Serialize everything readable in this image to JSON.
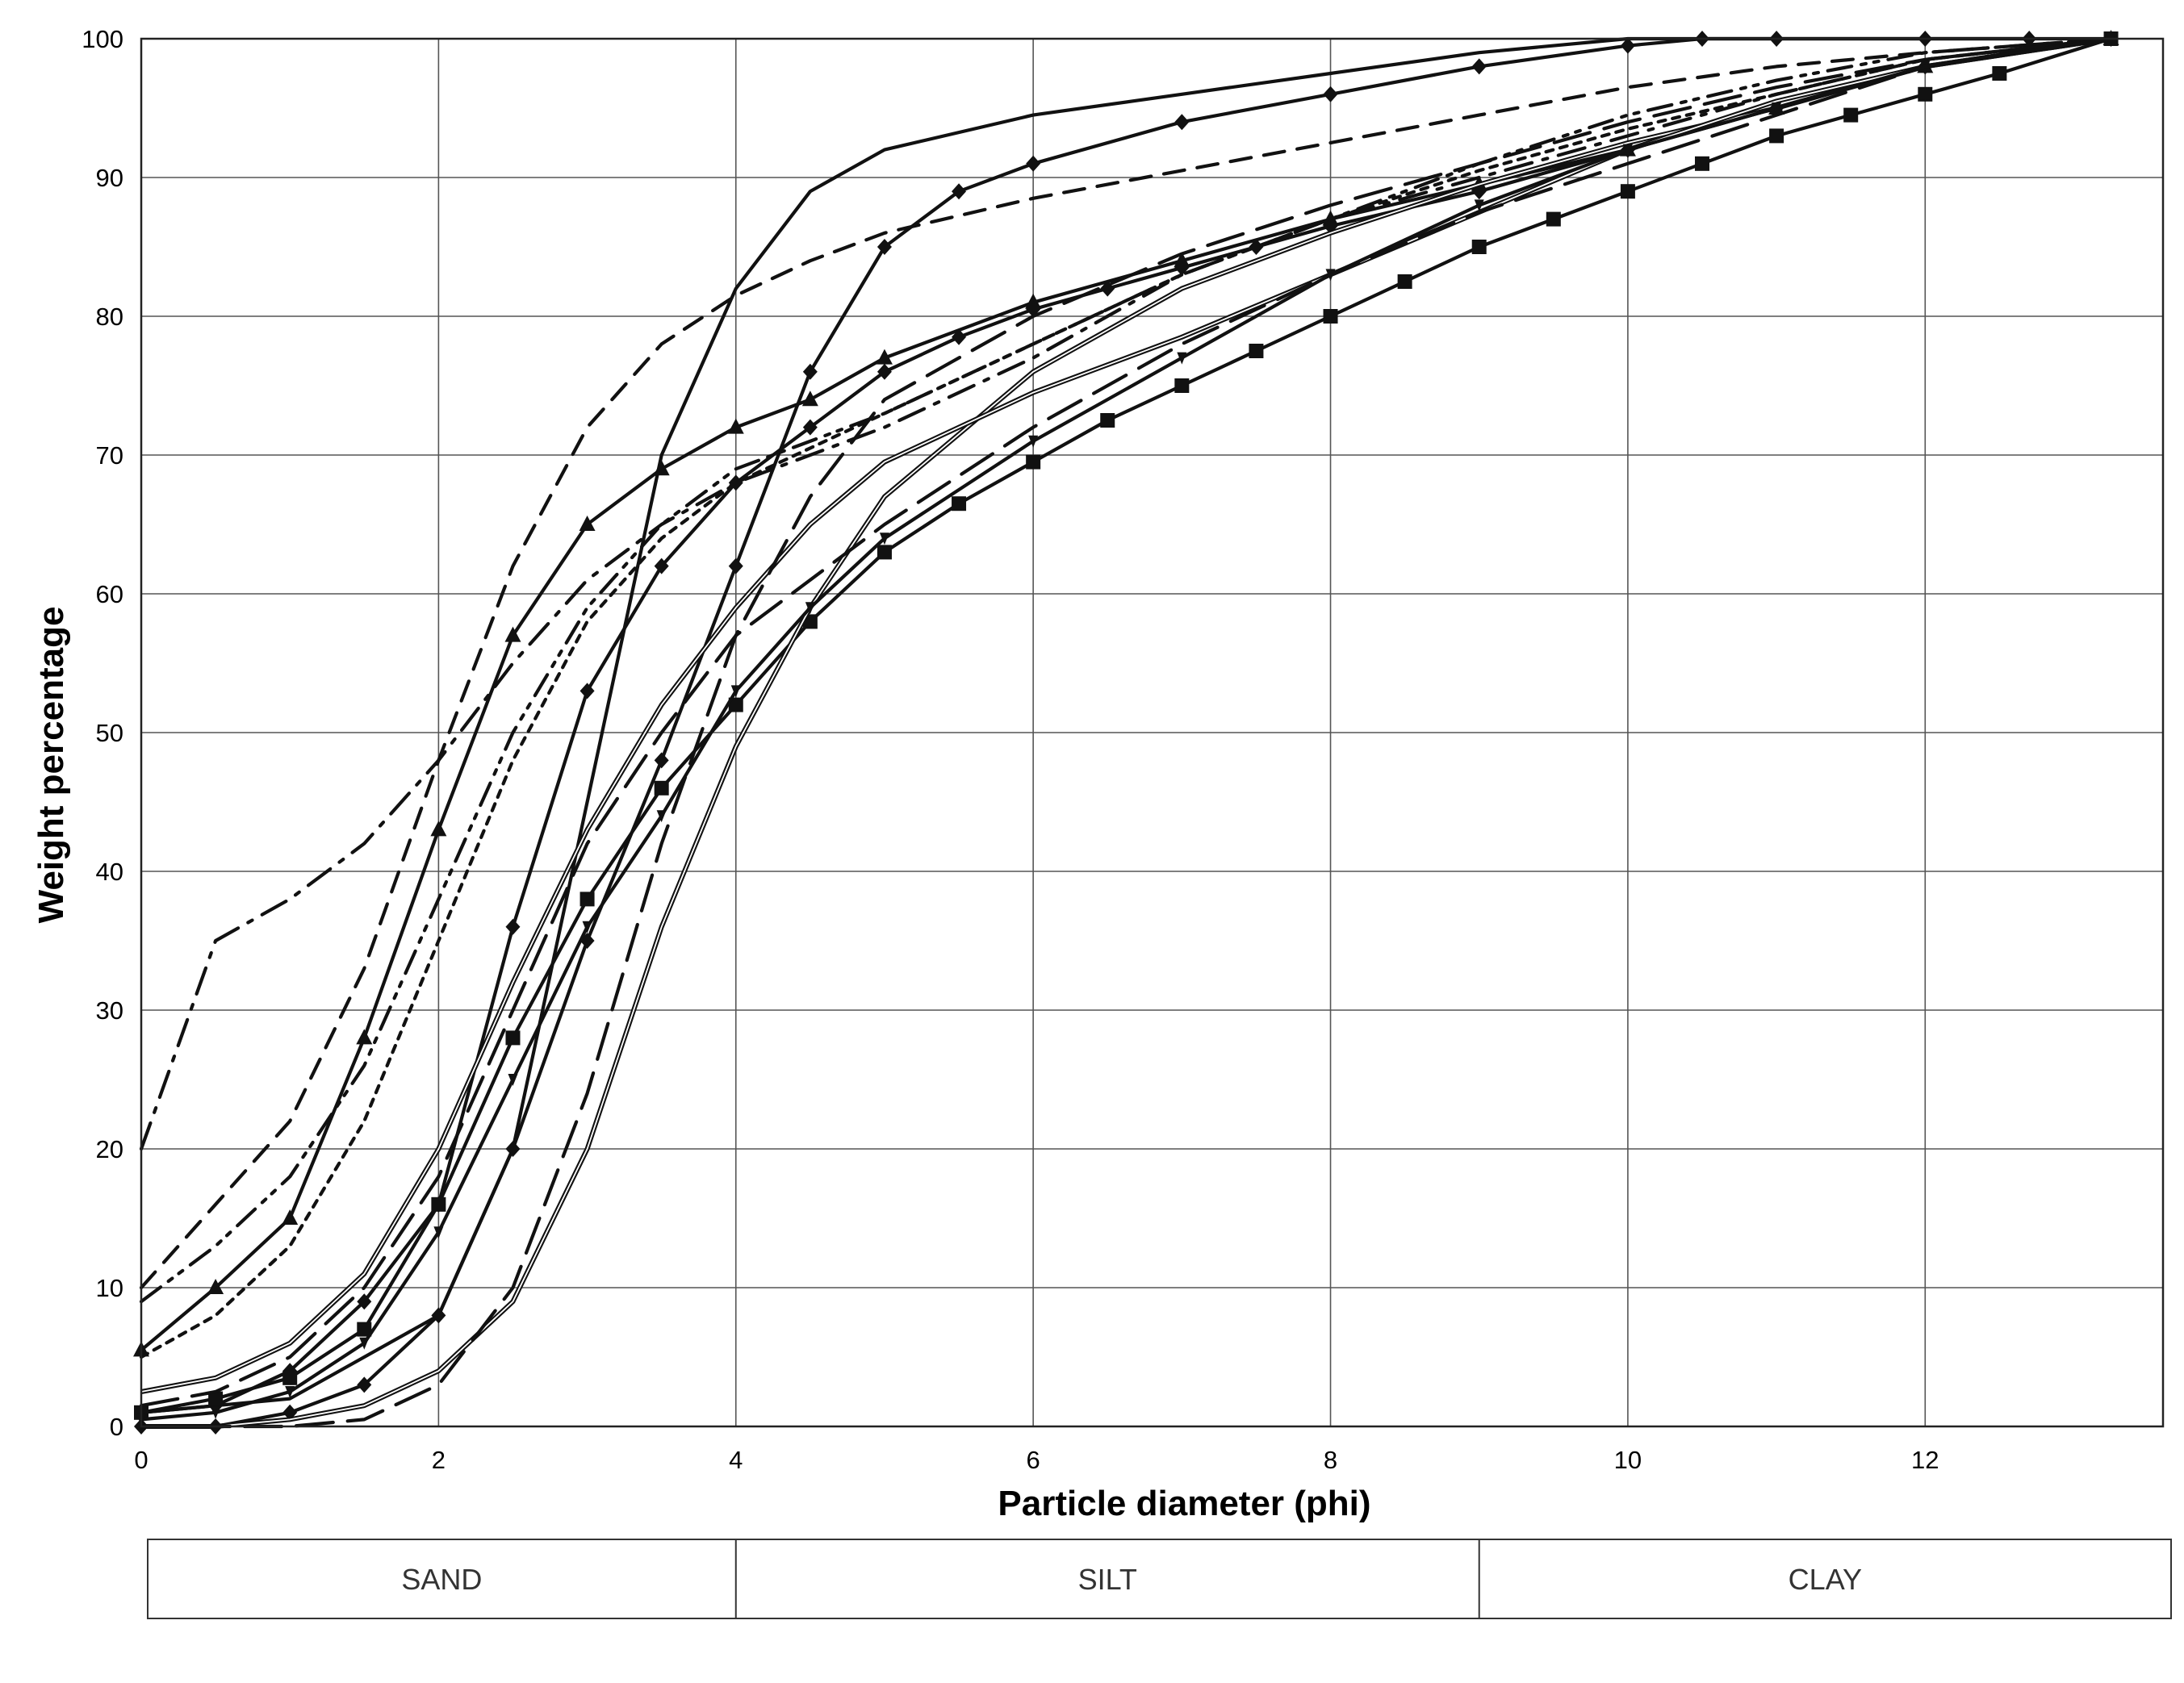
{
  "chart_data": {
    "type": "line",
    "title": "",
    "xlabel": "Particle diameter (phi)",
    "ylabel": "Weight percentage",
    "xlim": [
      0,
      13.6
    ],
    "ylim": [
      0,
      100
    ],
    "x_ticks": [
      "0",
      "2",
      "4",
      "6",
      "8",
      "10",
      "12"
    ],
    "y_ticks": [
      "0",
      "10",
      "20",
      "30",
      "40",
      "50",
      "60",
      "70",
      "80",
      "90",
      "100"
    ],
    "grid": true,
    "legend": "none",
    "size_classes": [
      {
        "label": "SAND",
        "from": 0,
        "to": 4
      },
      {
        "label": "SILT",
        "from": 4,
        "to": 9
      },
      {
        "label": "CLAY",
        "from": 9,
        "to": 13.6
      }
    ],
    "series": [
      {
        "style": "solid",
        "marker": "none",
        "x": [
          0,
          1,
          2,
          2.5,
          3,
          3.5,
          4,
          4.5,
          5,
          6,
          7,
          8,
          9,
          10,
          11,
          12,
          13.25
        ],
        "y": [
          1,
          2,
          8,
          20,
          45,
          70,
          82,
          89,
          92,
          94.5,
          96,
          97.5,
          99,
          100,
          100,
          100,
          100
        ]
      },
      {
        "style": "solid",
        "marker": "diamond",
        "x": [
          0,
          0.5,
          1,
          1.5,
          2,
          2.5,
          3,
          3.5,
          4,
          4.5,
          5,
          5.5,
          6,
          7,
          8,
          9,
          10,
          10.5,
          11,
          12,
          12.7
        ],
        "y": [
          0,
          0,
          1,
          3,
          8,
          20,
          35,
          48,
          62,
          76,
          85,
          89,
          91,
          94,
          96,
          98,
          99.5,
          100,
          100,
          100,
          100
        ]
      },
      {
        "style": "dashed",
        "marker": "none",
        "x": [
          0,
          0.5,
          1,
          1.5,
          2,
          2.5,
          3,
          3.5,
          4,
          4.5,
          5,
          6,
          7,
          8,
          9,
          10,
          11,
          12,
          13.25
        ],
        "y": [
          10,
          16,
          22,
          33,
          48,
          62,
          72,
          78,
          81.5,
          84,
          86,
          88.5,
          90.5,
          92.5,
          94.5,
          96.5,
          98,
          99,
          100
        ]
      },
      {
        "style": "solid",
        "marker": "triangle",
        "x": [
          0,
          0.5,
          1,
          1.5,
          2,
          2.5,
          3,
          3.5,
          4,
          4.5,
          5,
          6,
          7,
          8,
          9,
          10,
          11,
          12,
          13.25
        ],
        "y": [
          5.5,
          10,
          15,
          28,
          43,
          57,
          65,
          69,
          72,
          74,
          77,
          81,
          84,
          87,
          89.5,
          92,
          95,
          98,
          100
        ]
      },
      {
        "style": "dashdot",
        "marker": "none",
        "x": [
          0,
          0.5,
          1,
          1.5,
          2,
          2.5,
          3,
          3.5,
          4,
          5,
          6,
          7,
          8,
          9,
          10,
          11,
          12,
          13.25
        ],
        "y": [
          20,
          35,
          38,
          42,
          48,
          55,
          61,
          65,
          68,
          72,
          77,
          83,
          87,
          90,
          93,
          96,
          98.5,
          100
        ]
      },
      {
        "style": "dashdotdot",
        "marker": "none",
        "x": [
          0,
          0.5,
          1,
          1.5,
          2,
          2.5,
          3,
          3.5,
          4,
          5,
          6,
          7,
          8,
          9,
          10,
          11,
          12,
          13.25
        ],
        "y": [
          9,
          13,
          18,
          26,
          38,
          50,
          59,
          65,
          69,
          73,
          78,
          83,
          87,
          91,
          94.5,
          97,
          99,
          100
        ]
      },
      {
        "style": "dotted",
        "marker": "none",
        "x": [
          0,
          0.5,
          1,
          1.5,
          2,
          2.5,
          3,
          3.5,
          4,
          5,
          6,
          7,
          8,
          9,
          10,
          11,
          12,
          13.25
        ],
        "y": [
          5,
          8,
          13,
          22,
          35,
          48,
          58,
          64,
          68,
          73,
          78,
          83,
          87,
          90.5,
          93.5,
          96,
          98.5,
          100
        ]
      },
      {
        "style": "solid",
        "marker": "diamond",
        "x": [
          0,
          0.5,
          1,
          1.5,
          2,
          2.5,
          3,
          3.5,
          4,
          4.5,
          5,
          5.5,
          6,
          6.5,
          7,
          7.5,
          8,
          9,
          10,
          11,
          12,
          13.25
        ],
        "y": [
          1,
          1.5,
          4,
          9,
          16,
          36,
          53,
          62,
          68,
          72,
          76,
          78.5,
          80.5,
          82,
          83.5,
          85,
          86.5,
          89,
          92,
          95,
          98,
          100
        ]
      },
      {
        "style": "solid",
        "marker": "square",
        "x": [
          0,
          0.5,
          1,
          1.5,
          2,
          2.5,
          3,
          3.5,
          4,
          4.5,
          5,
          5.5,
          6,
          6.5,
          7,
          7.5,
          8,
          8.5,
          9,
          9.5,
          10,
          10.5,
          11,
          11.5,
          12,
          12.5,
          13.25
        ],
        "y": [
          1,
          2,
          3.5,
          7,
          16,
          28,
          38,
          46,
          52,
          58,
          63,
          66.5,
          69.5,
          72.5,
          75,
          77.5,
          80,
          82.5,
          85,
          87,
          89,
          91,
          93,
          94.5,
          96,
          97.5,
          100
        ]
      },
      {
        "style": "double",
        "marker": "none",
        "x": [
          0,
          0.5,
          1,
          1.5,
          2,
          2.5,
          3,
          3.5,
          4,
          4.5,
          5,
          6,
          7,
          8,
          9,
          10,
          11,
          12,
          13.25
        ],
        "y": [
          0,
          0,
          0.5,
          1.5,
          4,
          9,
          20,
          36,
          49,
          59,
          67,
          76,
          82,
          86,
          89.5,
          92.5,
          95,
          98,
          100
        ]
      },
      {
        "style": "double",
        "marker": "none",
        "x": [
          0,
          0.5,
          1,
          1.5,
          2,
          2.5,
          3,
          3.5,
          4,
          4.5,
          5,
          6,
          7,
          8,
          9,
          10,
          11,
          12,
          13.25
        ],
        "y": [
          2.5,
          3.5,
          6,
          11,
          20,
          32,
          43,
          52,
          59,
          65,
          69.5,
          74.5,
          78.5,
          83,
          87.5,
          92,
          95.5,
          98,
          100
        ]
      },
      {
        "style": "solid",
        "marker": "arrow",
        "x": [
          0,
          0.5,
          1,
          1.5,
          2,
          2.5,
          3,
          3.5,
          4,
          4.5,
          5,
          6,
          7,
          8,
          9,
          10,
          11,
          12,
          13.25
        ],
        "y": [
          0.5,
          1,
          2.5,
          6,
          14,
          25,
          36,
          44,
          53,
          59,
          64,
          71,
          77,
          83,
          88,
          92,
          95,
          98,
          100
        ]
      },
      {
        "style": "longdash",
        "marker": "none",
        "x": [
          0,
          0.5,
          1,
          1.5,
          2,
          2.5,
          3,
          3.5,
          4,
          4.5,
          5,
          6,
          7,
          8,
          9,
          10,
          11,
          12,
          13.25
        ],
        "y": [
          0,
          0,
          0,
          0.5,
          3,
          10,
          24,
          42,
          57,
          67,
          74,
          80,
          84.5,
          88,
          91,
          94,
          96.5,
          98.5,
          100
        ]
      },
      {
        "style": "longdash",
        "marker": "none",
        "x": [
          0,
          0.5,
          1,
          1.5,
          2,
          2.5,
          3,
          3.5,
          4,
          5,
          6,
          7,
          8,
          9,
          10,
          11,
          12,
          13.25
        ],
        "y": [
          1.5,
          2.5,
          5,
          10,
          18,
          30,
          42,
          50,
          57,
          65,
          72,
          78,
          83,
          87.5,
          91,
          94.5,
          98,
          100
        ]
      }
    ]
  }
}
